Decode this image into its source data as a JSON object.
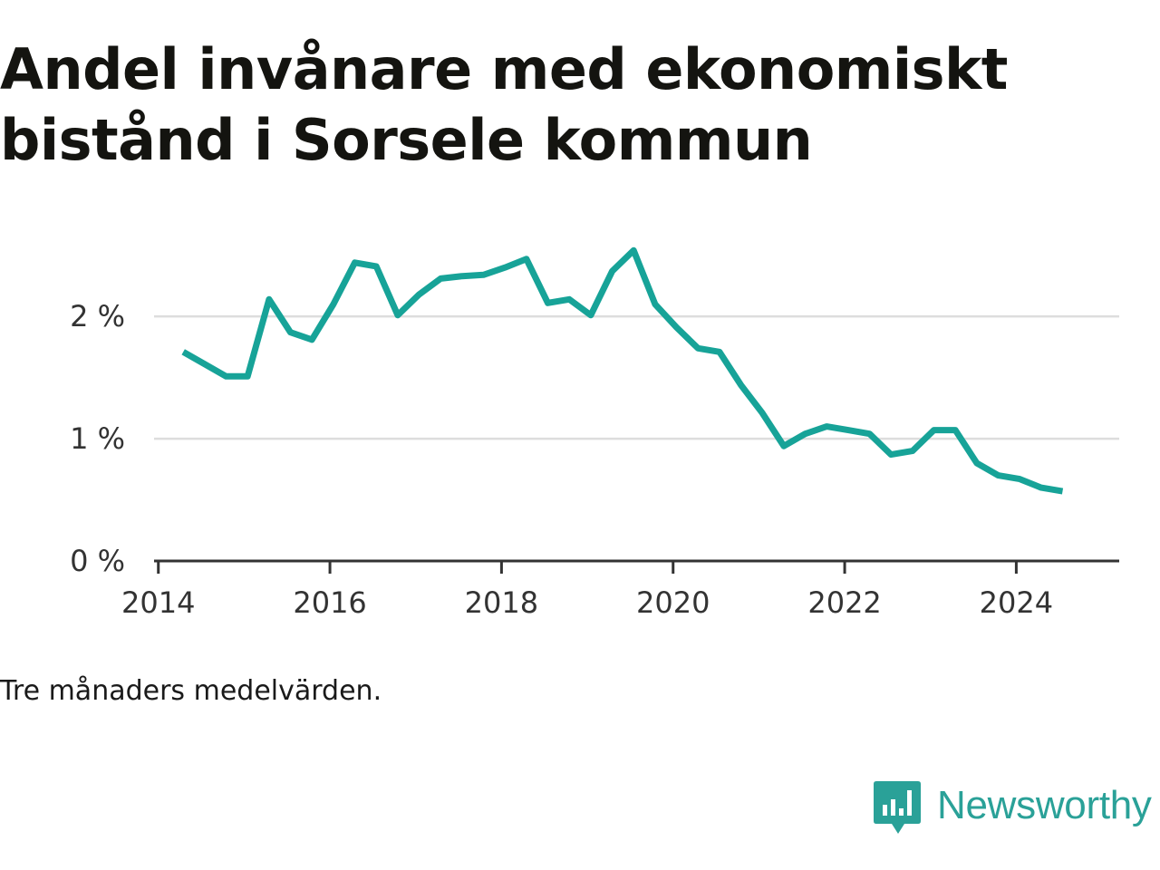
{
  "title": "Andel invånare med ekonomiskt bistånd i Sorsele kommun",
  "note": "Tre månaders medelvärden.",
  "brand": {
    "name": "Newsworthy",
    "icon": "newsworthy-logo-icon",
    "color": "#2aa198"
  },
  "colors": {
    "line": "#17a398",
    "grid": "#dddddd",
    "axis": "#333333"
  },
  "chart_data": {
    "type": "line",
    "title": "Andel invånare med ekonomiskt bistånd i Sorsele kommun",
    "xlabel": "",
    "ylabel": "",
    "xlim": [
      2013.95,
      2025.2
    ],
    "ylim": [
      0,
      2.75
    ],
    "y_ticks": [
      0,
      1,
      2
    ],
    "y_tick_labels": [
      "0 %",
      "1 %",
      "2 %"
    ],
    "x_ticks": [
      2014,
      2016,
      2018,
      2020,
      2022,
      2024
    ],
    "x_tick_labels": [
      "2014",
      "2016",
      "2018",
      "2020",
      "2022",
      "2024"
    ],
    "grid": "horizontal",
    "series": [
      {
        "x": [
          2014.29,
          2014.54,
          2014.79,
          2015.04,
          2015.29,
          2015.54,
          2015.79,
          2016.04,
          2016.29,
          2016.54,
          2016.79,
          2017.04,
          2017.29,
          2017.54,
          2017.79,
          2018.04,
          2018.29,
          2018.54,
          2018.79,
          2019.04,
          2019.29,
          2019.54,
          2019.79,
          2020.04,
          2020.29,
          2020.54,
          2020.79,
          2021.04,
          2021.29,
          2021.54,
          2021.79,
          2022.04,
          2022.29,
          2022.54,
          2022.79,
          2023.04,
          2023.29,
          2023.54,
          2023.79,
          2024.04,
          2024.29,
          2024.54
        ],
        "values": [
          1.71,
          1.61,
          1.51,
          1.51,
          2.14,
          1.87,
          1.81,
          2.1,
          2.44,
          2.41,
          2.01,
          2.18,
          2.31,
          2.33,
          2.34,
          2.4,
          2.47,
          2.11,
          2.14,
          2.01,
          2.37,
          2.54,
          2.1,
          1.91,
          1.74,
          1.71,
          1.44,
          1.21,
          0.94,
          1.04,
          1.1,
          1.07,
          1.04,
          0.87,
          0.9,
          1.07,
          1.07,
          0.8,
          0.7,
          0.67,
          0.6,
          0.57
        ]
      }
    ]
  }
}
